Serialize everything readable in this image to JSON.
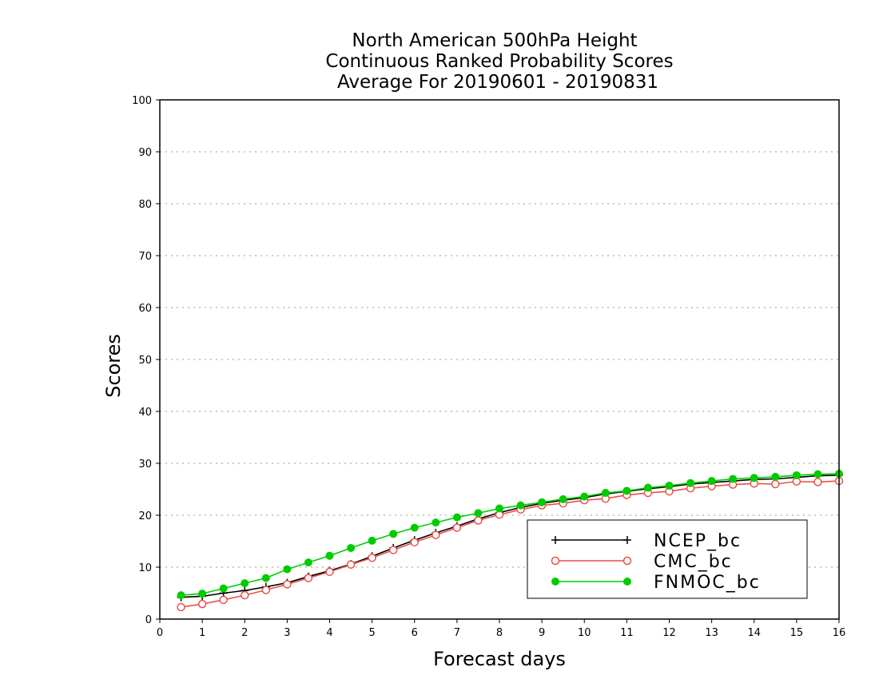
{
  "chart_data": {
    "type": "line",
    "title": [
      "North American 500hPa Height",
      "Continuous Ranked Probability Scores",
      "Average For 20190601 - 20190831"
    ],
    "xlabel": "Forecast days",
    "ylabel": "Scores",
    "xlim": [
      0,
      16
    ],
    "ylim": [
      0,
      100
    ],
    "xticks": [
      0,
      1,
      2,
      3,
      4,
      5,
      6,
      7,
      8,
      9,
      10,
      11,
      12,
      13,
      14,
      15,
      16
    ],
    "yticks": [
      0,
      10,
      20,
      30,
      40,
      50,
      60,
      70,
      80,
      90,
      100
    ],
    "grid": true,
    "legend_position": "bottom-right",
    "x": [
      0.5,
      1,
      1.5,
      2,
      2.5,
      3,
      3.5,
      4,
      4.5,
      5,
      5.5,
      6,
      6.5,
      7,
      7.5,
      8,
      8.5,
      9,
      9.5,
      10,
      10.5,
      11,
      11.5,
      12,
      12.5,
      13,
      13.5,
      14,
      14.5,
      15,
      15.5,
      16
    ],
    "series": [
      {
        "name": "NCEP_bc",
        "color": "#000000",
        "marker": "plus",
        "values": [
          4.2,
          4.4,
          5.0,
          5.5,
          6.2,
          7.0,
          8.2,
          9.3,
          10.6,
          12.1,
          13.7,
          15.2,
          16.6,
          17.9,
          19.3,
          20.5,
          21.5,
          22.3,
          22.9,
          23.4,
          24.1,
          24.6,
          25.1,
          25.5,
          26.0,
          26.3,
          26.6,
          26.9,
          27.0,
          27.3,
          27.6,
          27.7
        ]
      },
      {
        "name": "CMC_bc",
        "color": "#e8504a",
        "marker": "open-circle",
        "values": [
          2.3,
          2.9,
          3.7,
          4.6,
          5.6,
          6.7,
          7.9,
          9.1,
          10.5,
          11.8,
          13.3,
          14.8,
          16.2,
          17.6,
          19.0,
          20.1,
          21.1,
          21.9,
          22.3,
          22.9,
          23.2,
          23.9,
          24.3,
          24.6,
          25.2,
          25.6,
          25.9,
          26.1,
          26.0,
          26.5,
          26.4,
          26.6
        ]
      },
      {
        "name": "FNMOC_bc",
        "color": "#00cc00",
        "marker": "filled-circle",
        "values": [
          4.6,
          4.9,
          5.9,
          6.9,
          7.9,
          9.6,
          10.9,
          12.2,
          13.7,
          15.1,
          16.4,
          17.6,
          18.6,
          19.6,
          20.4,
          21.3,
          21.9,
          22.5,
          23.1,
          23.6,
          24.3,
          24.7,
          25.3,
          25.7,
          26.2,
          26.6,
          27.0,
          27.2,
          27.4,
          27.7,
          27.9,
          28.0
        ]
      }
    ]
  }
}
